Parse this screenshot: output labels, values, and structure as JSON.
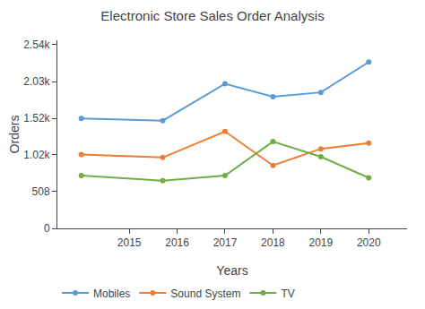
{
  "chart_data": {
    "type": "line",
    "title": "Electronic Store Sales Order Analysis",
    "xlabel": "Years",
    "ylabel": "Orders",
    "x": [
      2014,
      2015.7,
      2017,
      2018,
      2019,
      2020
    ],
    "series": [
      {
        "name": "Mobiles",
        "color": "#5B9BD5",
        "values": [
          1520,
          1490,
          2000,
          1820,
          1880,
          2300
        ]
      },
      {
        "name": "Sound System",
        "color": "#ED7D31",
        "values": [
          1020,
          980,
          1340,
          870,
          1100,
          1180
        ]
      },
      {
        "name": "TV",
        "color": "#70AD47",
        "values": [
          730,
          660,
          730,
          1200,
          990,
          700
        ]
      }
    ],
    "marker": "circle",
    "xlim": [
      2013.5,
      2020.8
    ],
    "xticks": [
      2015,
      2016,
      2017,
      2018,
      2019,
      2020
    ],
    "ylim": [
      0,
      2600
    ],
    "yticks": [
      0,
      508,
      {
        "value": 1020,
        "label": "1.02k"
      },
      {
        "value": 1520,
        "label": "1.52k"
      },
      {
        "value": 2030,
        "label": "2.03k"
      },
      {
        "value": 2540,
        "label": "2.54k"
      }
    ],
    "grid": false,
    "legend": "bottom"
  }
}
